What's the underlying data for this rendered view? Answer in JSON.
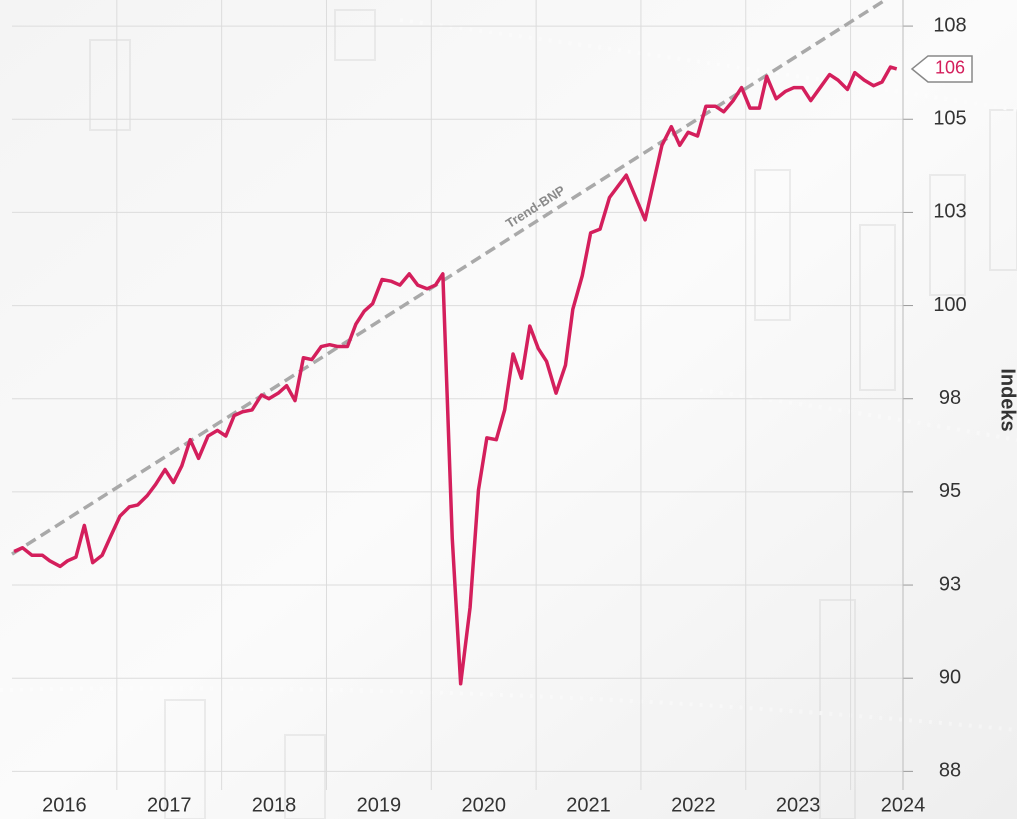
{
  "chart_data": {
    "type": "line",
    "axis_label": "Indeks",
    "xlim": [
      2016.0,
      2024.5
    ],
    "xticks": [
      2016,
      2017,
      2018,
      2019,
      2020,
      2021,
      2022,
      2023,
      2024
    ],
    "ylim": [
      87.0,
      108.2
    ],
    "yticks": [
      {
        "value": 87.5,
        "label": "88"
      },
      {
        "value": 90,
        "label": "90"
      },
      {
        "value": 92.5,
        "label": "93"
      },
      {
        "value": 95,
        "label": "95"
      },
      {
        "value": 97.5,
        "label": "98"
      },
      {
        "value": 100,
        "label": "100"
      },
      {
        "value": 102.5,
        "label": "103"
      },
      {
        "value": 105,
        "label": "105"
      },
      {
        "value": 107.5,
        "label": "108"
      }
    ],
    "grid": true,
    "trend": {
      "label": "Trend-BNP",
      "x": [
        2016.0,
        2024.33
      ],
      "y": [
        93.33,
        108.2
      ],
      "color": "#a9a9a9"
    },
    "last_label": "106",
    "series": [
      {
        "color": "#d41f5c",
        "x": [
          2016.02,
          2016.1,
          2016.19,
          2016.29,
          2016.36,
          2016.46,
          2016.53,
          2016.61,
          2016.69,
          2016.77,
          2016.86,
          2016.94,
          2017.03,
          2017.12,
          2017.2,
          2017.29,
          2017.37,
          2017.46,
          2017.54,
          2017.62,
          2017.7,
          2017.78,
          2017.87,
          2017.96,
          2018.04,
          2018.12,
          2018.2,
          2018.29,
          2018.38,
          2018.45,
          2018.54,
          2018.62,
          2018.7,
          2018.78,
          2018.86,
          2018.95,
          2019.03,
          2019.11,
          2019.2,
          2019.28,
          2019.36,
          2019.44,
          2019.53,
          2019.62,
          2019.7,
          2019.79,
          2019.87,
          2019.96,
          2020.04,
          2020.11,
          2020.2,
          2020.28,
          2020.37,
          2020.45,
          2020.53,
          2020.62,
          2020.7,
          2020.78,
          2020.86,
          2020.94,
          2021.02,
          2021.1,
          2021.19,
          2021.28,
          2021.35,
          2021.44,
          2021.52,
          2021.61,
          2021.7,
          2021.78,
          2021.86,
          2021.95,
          2022.04,
          2022.12,
          2022.2,
          2022.29,
          2022.37,
          2022.45,
          2022.54,
          2022.62,
          2022.71,
          2022.79,
          2022.88,
          2022.96,
          2023.04,
          2023.13,
          2023.2,
          2023.29,
          2023.38,
          2023.46,
          2023.54,
          2023.62,
          2023.71,
          2023.8,
          2023.88,
          2023.97,
          2024.04,
          2024.13,
          2024.22,
          2024.3,
          2024.38,
          2024.44
        ],
        "values": [
          93.4,
          93.5,
          93.3,
          93.3,
          93.15,
          93.0,
          93.15,
          93.25,
          94.1,
          93.1,
          93.3,
          93.8,
          94.35,
          94.6,
          94.65,
          94.9,
          95.2,
          95.6,
          95.25,
          95.7,
          96.4,
          95.9,
          96.5,
          96.65,
          96.5,
          97.05,
          97.15,
          97.2,
          97.6,
          97.5,
          97.65,
          97.85,
          97.45,
          98.6,
          98.55,
          98.9,
          98.95,
          98.9,
          98.9,
          99.5,
          99.85,
          100.05,
          100.7,
          100.65,
          100.55,
          100.85,
          100.55,
          100.45,
          100.55,
          100.85,
          93.75,
          89.85,
          91.9,
          95.05,
          96.45,
          96.4,
          97.2,
          98.7,
          98.05,
          99.45,
          98.85,
          98.5,
          97.65,
          98.4,
          99.9,
          100.8,
          101.95,
          102.05,
          102.9,
          103.2,
          103.5,
          102.9,
          102.3,
          103.3,
          104.3,
          104.8,
          104.3,
          104.65,
          104.55,
          105.35,
          105.35,
          105.2,
          105.5,
          105.85,
          105.3,
          105.3,
          106.15,
          105.55,
          105.75,
          105.85,
          105.85,
          105.5,
          105.85,
          106.2,
          106.05,
          105.8,
          106.25,
          106.05,
          105.9,
          106.0,
          106.4,
          106.35
        ]
      }
    ]
  }
}
